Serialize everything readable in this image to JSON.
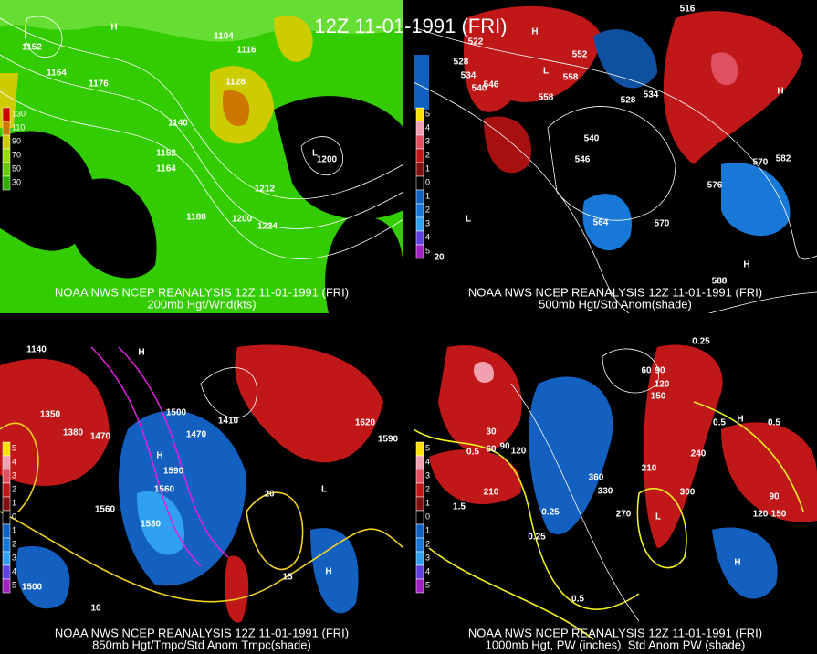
{
  "title": "12Z 11-01-1991 (FRI)",
  "panels": [
    {
      "source": "NOAA NWS NCEP REANALYSIS 12Z 11-01-1991 (FRI)",
      "caption": "200mb Hgt/Wnd(kts)",
      "legend": [
        "130",
        "110",
        "90",
        "70",
        "50",
        "30"
      ],
      "labels": [
        "1152",
        "1164",
        "1176",
        "1104",
        "1116",
        "1128",
        "1140",
        "1152",
        "1164",
        "1200",
        "1212",
        "1188",
        "1200",
        "1224",
        "H",
        "L"
      ]
    },
    {
      "source": "NOAA NWS NCEP REANALYSIS 12Z 11-01-1991 (FRI)",
      "caption": "500mb Hgt/Std Anom(shade)",
      "legend": [
        "5",
        "4",
        "3",
        "2",
        "1",
        "0",
        "1",
        "2",
        "3",
        "4",
        "5"
      ],
      "labels": [
        "516",
        "522",
        "528",
        "534",
        "540",
        "546",
        "558",
        "552",
        "558",
        "528",
        "534",
        "540",
        "546",
        "564",
        "570",
        "576",
        "582",
        "570",
        "588",
        "20",
        "H",
        "L",
        "L",
        "H",
        "H"
      ]
    },
    {
      "source": "NOAA NWS NCEP REANALYSIS 12Z 11-01-1991 (FRI)",
      "caption": "850mb Hgt/Tmpc/Std Anom Tmpc(shade)",
      "legend": [
        "5",
        "4",
        "3",
        "2",
        "1",
        "0",
        "1",
        "2",
        "3",
        "4",
        "5"
      ],
      "labels": [
        "1140",
        "1350",
        "1380",
        "1470",
        "1500",
        "1470",
        "1410",
        "1590",
        "1560",
        "1530",
        "1560",
        "1500",
        "1620",
        "1590",
        "10",
        "15",
        "20",
        "H",
        "H",
        "L",
        "H"
      ]
    },
    {
      "source": "NOAA NWS NCEP REANALYSIS 12Z 11-01-1991 (FRI)",
      "caption": "1000mb Hgt, PW (inches), Std Anom PW (shade)",
      "legend": [
        "5",
        "4",
        "3",
        "2",
        "1",
        "0",
        "1",
        "2",
        "3",
        "4",
        "5"
      ],
      "labels": [
        "60",
        "90",
        "120",
        "150",
        "30",
        "60",
        "90",
        "120",
        "0.5",
        "0.5",
        "0.5",
        "240",
        "210",
        "270",
        "300",
        "360",
        "330",
        "210",
        "1.5",
        "0.25",
        "0.25",
        "0.5",
        "90",
        "120",
        "150",
        "0.25",
        "H",
        "L",
        "H"
      ]
    }
  ]
}
